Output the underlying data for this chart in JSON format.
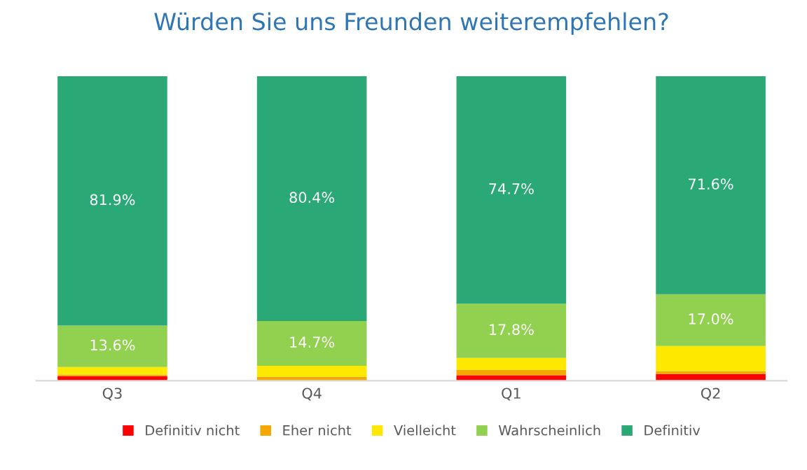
{
  "chart_data": {
    "type": "bar",
    "title": "Würden Sie uns Freunden weiterempfehlen?",
    "categories": [
      "Q3",
      "Q4",
      "Q1",
      "Q2"
    ],
    "stacked": true,
    "legend": "bottom",
    "grid": false,
    "series": [
      {
        "name": "Definitiv nicht",
        "color": "#ff0000",
        "values": [
          1.5,
          0,
          1.8,
          2.2
        ]
      },
      {
        "name": "Eher nicht",
        "color": "#f5a800",
        "values": [
          0.5,
          1.3,
          1.8,
          0.9
        ]
      },
      {
        "name": "Vielleicht",
        "color": "#ffe800",
        "values": [
          2.5,
          3.6,
          3.9,
          8.3
        ]
      },
      {
        "name": "Wahrscheinlich",
        "color": "#92d050",
        "values": [
          13.6,
          14.7,
          17.8,
          17.0
        ],
        "value_labels": [
          "13.6%",
          "14.7%",
          "17.8%",
          "17.0%"
        ]
      },
      {
        "name": "Definitiv",
        "color": "#2aa876",
        "values": [
          81.9,
          80.4,
          74.7,
          71.6
        ],
        "value_labels": [
          "81.9%",
          "80.4%",
          "74.7%",
          "71.6%"
        ]
      }
    ]
  }
}
